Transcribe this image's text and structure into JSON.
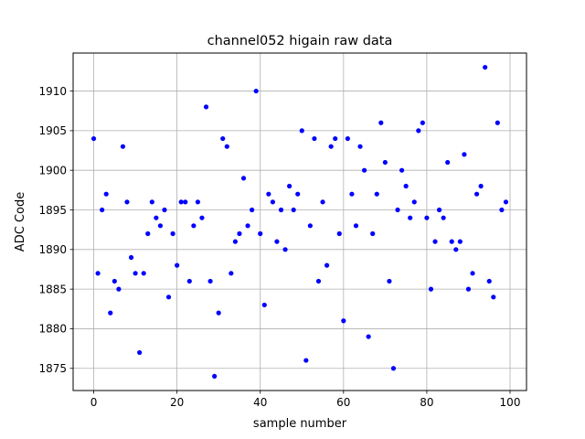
{
  "chart_data": {
    "type": "scatter",
    "title": "channel052 higain raw data",
    "xlabel": "sample number",
    "ylabel": "ADC Code",
    "xlim": [
      -4.95,
      103.95
    ],
    "ylim": [
      1872.2,
      1914.8
    ],
    "xticks": [
      0,
      20,
      40,
      60,
      80,
      100
    ],
    "yticks": [
      1875,
      1880,
      1885,
      1890,
      1895,
      1900,
      1905,
      1910
    ],
    "grid": true,
    "marker_color": "#0000ff",
    "series": [
      {
        "x": [
          0,
          1,
          2,
          3,
          4,
          5,
          6,
          7,
          8,
          9,
          10,
          11,
          12,
          13,
          14,
          15,
          16,
          17,
          18,
          19,
          20,
          21,
          22,
          23,
          24,
          25,
          26,
          27,
          28,
          29,
          30,
          31,
          32,
          33,
          34,
          35,
          36,
          37,
          38,
          39,
          40,
          41,
          42,
          43,
          44,
          45,
          46,
          47,
          48,
          49,
          50,
          51,
          52,
          53,
          54,
          55,
          56,
          57,
          58,
          59,
          60,
          61,
          62,
          63,
          64,
          65,
          66,
          67,
          68,
          69,
          70,
          71,
          72,
          73,
          74,
          75,
          76,
          77,
          78,
          79,
          80,
          81,
          82,
          83,
          84,
          85,
          86,
          87,
          88,
          89,
          90,
          91,
          92,
          93,
          94,
          95,
          96,
          97,
          98,
          99
        ],
        "y": [
          1904,
          1887,
          1895,
          1897,
          1882,
          1886,
          1885,
          1903,
          1896,
          1889,
          1887,
          1877,
          1887,
          1892,
          1896,
          1894,
          1893,
          1895,
          1884,
          1892,
          1888,
          1896,
          1896,
          1886,
          1893,
          1896,
          1894,
          1908,
          1886,
          1874,
          1882,
          1904,
          1903,
          1887,
          1891,
          1892,
          1899,
          1893,
          1895,
          1910,
          1892,
          1883,
          1897,
          1896,
          1891,
          1895,
          1890,
          1898,
          1895,
          1897,
          1905,
          1876,
          1893,
          1904,
          1886,
          1896,
          1888,
          1903,
          1904,
          1892,
          1881,
          1904,
          1897,
          1893,
          1903,
          1900,
          1879,
          1892,
          1897,
          1906,
          1901,
          1886,
          1875,
          1895,
          1900,
          1898,
          1894,
          1896,
          1905,
          1906,
          1894,
          1885,
          1891,
          1895,
          1894,
          1901,
          1891,
          1890,
          1891,
          1902,
          1885,
          1887,
          1897,
          1898,
          1913,
          1886,
          1884,
          1906,
          1895,
          1896
        ]
      }
    ]
  }
}
